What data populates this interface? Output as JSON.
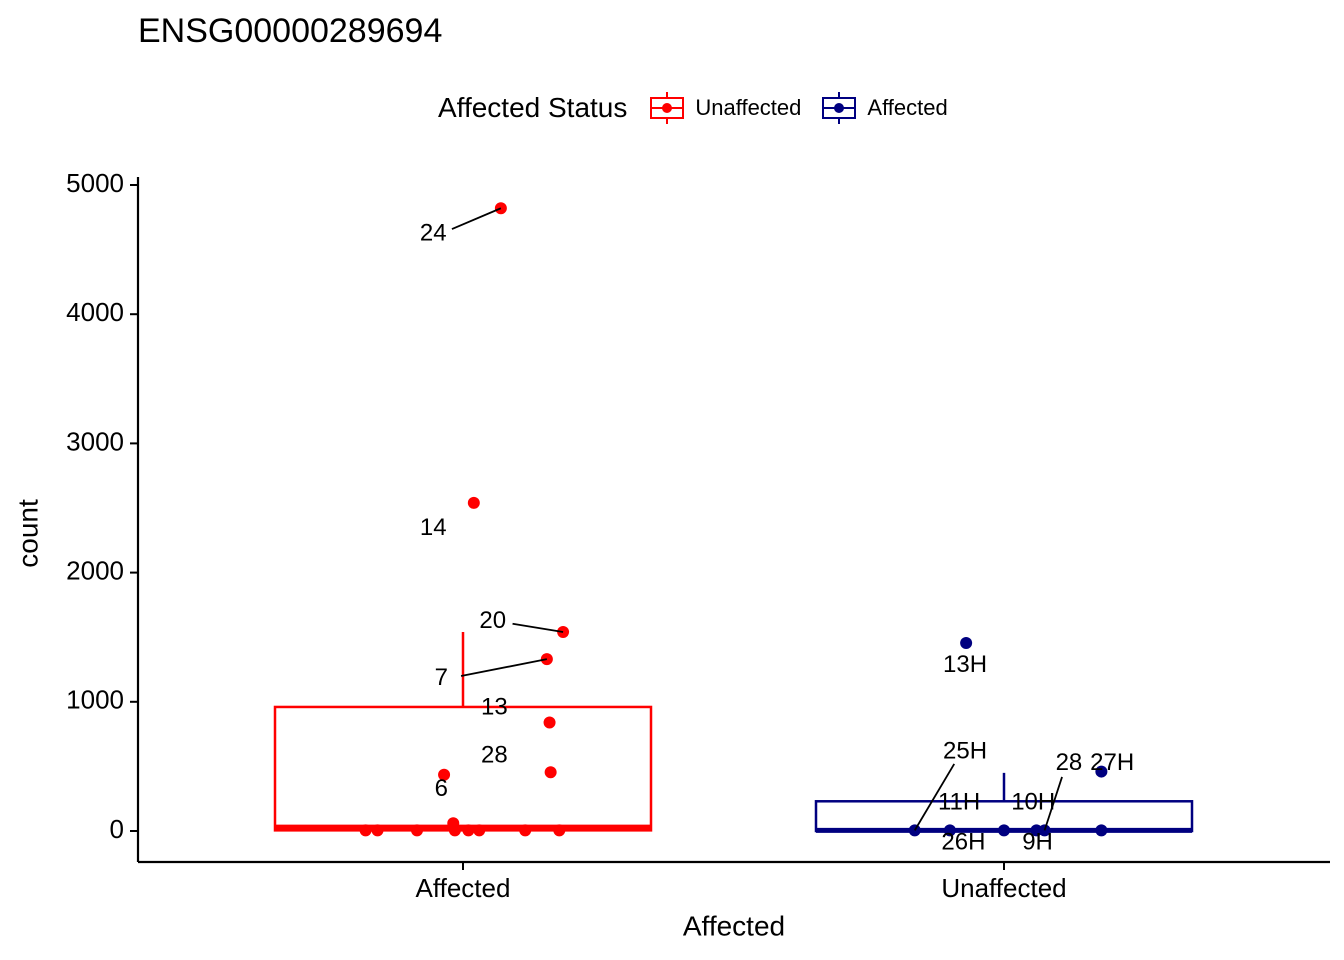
{
  "chart_data": {
    "type": "box",
    "title": "ENSG00000289694",
    "xlabel": "Affected",
    "ylabel": "count",
    "categories": [
      "Affected",
      "Unaffected"
    ],
    "ylim": [
      -230,
      5060
    ],
    "yticks": [
      0,
      1000,
      2000,
      3000,
      4000,
      5000
    ],
    "grid": false,
    "legend": {
      "title": "Affected Status",
      "position": "top",
      "entries": [
        {
          "label": "Unaffected",
          "color": "#ff0000"
        },
        {
          "label": "Affected",
          "color": "#000080"
        }
      ]
    },
    "boxes": [
      {
        "category": "Affected",
        "color": "#ff0000",
        "q1": 5,
        "median": 30,
        "q3": 960,
        "whisker_low": 0,
        "whisker_high": 1540
      },
      {
        "category": "Unaffected",
        "color": "#000080",
        "q1": 0,
        "median": 5,
        "q3": 230,
        "whisker_low": 0,
        "whisker_high": 450
      }
    ],
    "points": [
      {
        "category": "Affected",
        "x": 0.07,
        "y": 4820,
        "label": "24",
        "lx": -0.055,
        "ly": 4620
      },
      {
        "category": "Affected",
        "x": 0.02,
        "y": 2540,
        "label": "14",
        "lx": -0.055,
        "ly": 2340
      },
      {
        "category": "Affected",
        "x": 0.185,
        "y": 1540,
        "label": "20",
        "lx": 0.055,
        "ly": 1620
      },
      {
        "category": "Affected",
        "x": 0.155,
        "y": 1330,
        "label": "7",
        "lx": -0.04,
        "ly": 1180
      },
      {
        "category": "Affected",
        "x": 0.16,
        "y": 840,
        "label": "13",
        "lx": 0.058,
        "ly": 950
      },
      {
        "category": "Affected",
        "x": 0.162,
        "y": 455,
        "label": "28",
        "lx": 0.058,
        "ly": 580
      },
      {
        "category": "Affected",
        "x": -0.035,
        "y": 435,
        "label": "6",
        "lx": -0.04,
        "ly": 320
      },
      {
        "category": "Affected",
        "x": -0.18,
        "y": 5
      },
      {
        "category": "Affected",
        "x": -0.158,
        "y": 5
      },
      {
        "category": "Affected",
        "x": -0.085,
        "y": 5
      },
      {
        "category": "Affected",
        "x": -0.018,
        "y": 60
      },
      {
        "category": "Affected",
        "x": -0.015,
        "y": 5
      },
      {
        "category": "Affected",
        "x": 0.01,
        "y": 5
      },
      {
        "category": "Affected",
        "x": 0.03,
        "y": 5
      },
      {
        "category": "Affected",
        "x": 0.115,
        "y": 5
      },
      {
        "category": "Affected",
        "x": 0.178,
        "y": 5
      },
      {
        "category": "Unaffected",
        "x": -0.07,
        "y": 1455,
        "label": "13H",
        "lx": -0.072,
        "ly": 1280
      },
      {
        "category": "Unaffected",
        "x": -0.165,
        "y": 5,
        "label": "25H",
        "lx": -0.072,
        "ly": 610
      },
      {
        "category": "Unaffected",
        "x": -0.1,
        "y": 5,
        "label": "11H",
        "lx": -0.083,
        "ly": 215
      },
      {
        "category": "Unaffected",
        "x": 0.06,
        "y": 5,
        "label": "10H",
        "lx": 0.054,
        "ly": 215
      },
      {
        "category": "Unaffected",
        "x": 0.075,
        "y": 5,
        "label": "28",
        "lx": 0.12,
        "ly": 520
      },
      {
        "category": "Unaffected",
        "x": 0.18,
        "y": 5,
        "label": "9H",
        "lx": 0.062,
        "ly": -95
      },
      {
        "category": "Unaffected",
        "x": 0.18,
        "y": 460,
        "label": "27H",
        "lx": 0.2,
        "ly": 520
      },
      {
        "category": "Unaffected",
        "x": 0.0,
        "y": 5,
        "label": "26H",
        "lx": -0.075,
        "ly": -95
      }
    ]
  }
}
